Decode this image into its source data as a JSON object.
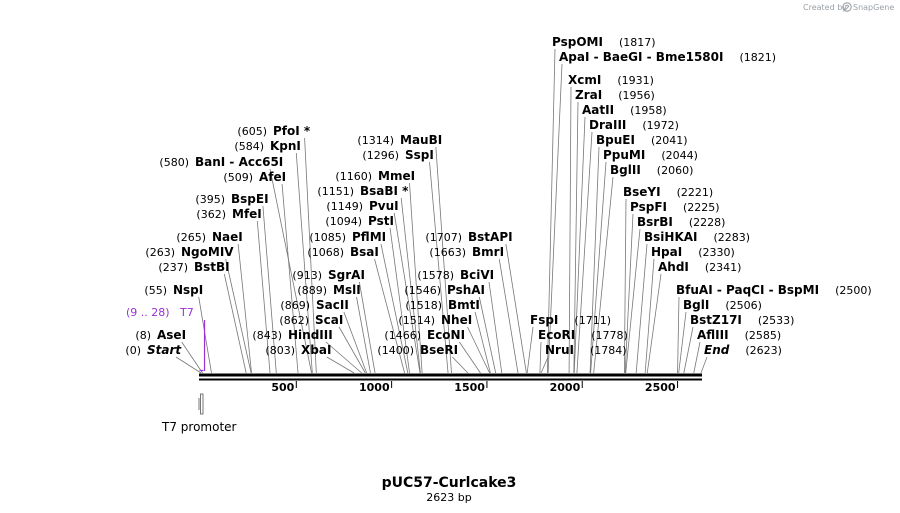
{
  "header": {
    "credit_prefix": "Created by",
    "credit_brand": "SnapGene",
    "logo_icon": "snapgene-logo-icon"
  },
  "plasmid": {
    "name": "pUC57-Curlcake3",
    "length_label": "2623 bp",
    "length_bp": 2623
  },
  "axis": {
    "ticks": [
      {
        "bp": 500,
        "label": "500"
      },
      {
        "bp": 1000,
        "label": "1000"
      },
      {
        "bp": 1500,
        "label": "1500"
      },
      {
        "bp": 2000,
        "label": "2000"
      },
      {
        "bp": 2500,
        "label": "2500"
      }
    ]
  },
  "primer": {
    "name": "T7",
    "position": "(9 .. 28)",
    "start_bp": 9,
    "end_bp": 28,
    "color": "#9b30d9"
  },
  "feature": {
    "name": "T7 promoter",
    "start_bp": 9,
    "end_bp": 28
  },
  "sites_left": [
    {
      "name": "Start",
      "pos": "(0)",
      "bp": 0,
      "italic": true
    },
    {
      "name": "AseI",
      "pos": "(8)",
      "bp": 8
    },
    {
      "name": "NspI",
      "pos": "(55)",
      "bp": 55
    },
    {
      "name": "BstBI",
      "pos": "(237)",
      "bp": 237
    },
    {
      "name": "NgoMIV",
      "pos": "(263)",
      "bp": 263
    },
    {
      "name": "NaeI",
      "pos": "(265)",
      "bp": 265
    },
    {
      "name": "MfeI",
      "pos": "(362)",
      "bp": 362
    },
    {
      "name": "BspEI",
      "pos": "(395)",
      "bp": 395
    },
    {
      "name": "AfeI",
      "pos": "(509)",
      "bp": 509
    },
    {
      "name": "BanI  - Acc65I",
      "pos": "(580)",
      "bp": 580
    },
    {
      "name": "KpnI",
      "pos": "(584)",
      "bp": 584
    },
    {
      "name": "PfoI *",
      "pos": "(605)",
      "bp": 605
    }
  ],
  "sites_mid": [
    {
      "name": "XbaI",
      "pos": "(803)",
      "bp": 803
    },
    {
      "name": "HindIII",
      "pos": "(843)",
      "bp": 843
    },
    {
      "name": "ScaI",
      "pos": "(862)",
      "bp": 862
    },
    {
      "name": "SacII",
      "pos": "(869)",
      "bp": 869
    },
    {
      "name": "MslI",
      "pos": "(889)",
      "bp": 889
    },
    {
      "name": "SgrAI",
      "pos": "(913)",
      "bp": 913
    },
    {
      "name": "BsaI",
      "pos": "(1068)",
      "bp": 1068
    },
    {
      "name": "PflMI",
      "pos": "(1085)",
      "bp": 1085
    },
    {
      "name": "PstI",
      "pos": "(1094)",
      "bp": 1094
    },
    {
      "name": "PvuI",
      "pos": "(1149)",
      "bp": 1149
    },
    {
      "name": "BsaBI *",
      "pos": "(1151)",
      "bp": 1151
    },
    {
      "name": "MmeI",
      "pos": "(1160)",
      "bp": 1160
    },
    {
      "name": "SspI",
      "pos": "(1296)",
      "bp": 1296
    },
    {
      "name": "MauBI",
      "pos": "(1314)",
      "bp": 1314
    }
  ],
  "sites_center": [
    {
      "name": "BseRI",
      "pos": "(1400)",
      "bp": 1400
    },
    {
      "name": "EcoNI",
      "pos": "(1466)",
      "bp": 1466
    },
    {
      "name": "NheI",
      "pos": "(1514)",
      "bp": 1514
    },
    {
      "name": "BmtI",
      "pos": "(1518)",
      "bp": 1518
    },
    {
      "name": "PshAI",
      "pos": "(1546)",
      "bp": 1546
    },
    {
      "name": "BciVI",
      "pos": "(1578)",
      "bp": 1578
    },
    {
      "name": "BmrI",
      "pos": "(1663)",
      "bp": 1663
    },
    {
      "name": "BstAPI",
      "pos": "(1707)",
      "bp": 1707
    }
  ],
  "sites_right_low": [
    {
      "name": "NruI",
      "pos": "(1784)",
      "bp": 1784
    },
    {
      "name": "EcoRI",
      "pos": "(1778)",
      "bp": 1778
    },
    {
      "name": "FspI",
      "pos": "(1711)",
      "bp": 1711
    }
  ],
  "sites_top": [
    {
      "name": "PspOMI",
      "pos": "(1817)",
      "bp": 1817
    },
    {
      "name": "ApaI  - BaeGI  - Bme1580I",
      "pos": "(1821)",
      "bp": 1821
    },
    {
      "name": "XcmI",
      "pos": "(1931)",
      "bp": 1931
    },
    {
      "name": "ZraI",
      "pos": "(1956)",
      "bp": 1956
    },
    {
      "name": "AatII",
      "pos": "(1958)",
      "bp": 1958
    },
    {
      "name": "DraIII",
      "pos": "(1972)",
      "bp": 1972
    },
    {
      "name": "BpuEI",
      "pos": "(2041)",
      "bp": 2041
    },
    {
      "name": "PpuMI",
      "pos": "(2044)",
      "bp": 2044
    },
    {
      "name": "BglII",
      "pos": "(2060)",
      "bp": 2060
    }
  ],
  "sites_right": [
    {
      "name": "BseYI",
      "pos": "(2221)",
      "bp": 2221
    },
    {
      "name": "PspFI",
      "pos": "(2225)",
      "bp": 2225
    },
    {
      "name": "BsrBI",
      "pos": "(2228)",
      "bp": 2228
    },
    {
      "name": "BsiHKAI",
      "pos": "(2283)",
      "bp": 2283
    },
    {
      "name": "HpaI",
      "pos": "(2330)",
      "bp": 2330
    },
    {
      "name": "AhdI",
      "pos": "(2341)",
      "bp": 2341
    },
    {
      "name": "BfuAI  - PaqCI  - BspMI",
      "pos": "(2500)",
      "bp": 2500
    },
    {
      "name": "BglI",
      "pos": "(2506)",
      "bp": 2506
    },
    {
      "name": "BstZ17I",
      "pos": "(2533)",
      "bp": 2533
    },
    {
      "name": "AflIII",
      "pos": "(2585)",
      "bp": 2585
    },
    {
      "name": "End",
      "pos": "(2623)",
      "bp": 2623,
      "italic": true
    }
  ]
}
